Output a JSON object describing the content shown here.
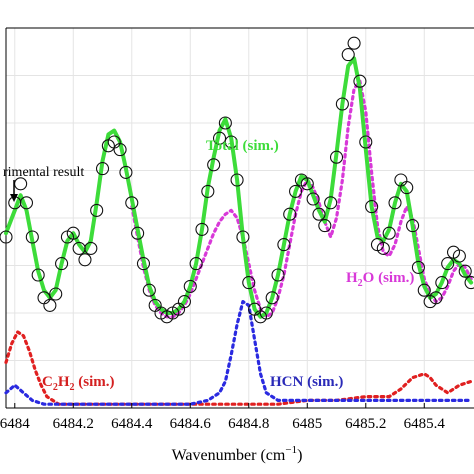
{
  "chart_data": {
    "type": "line",
    "xlabel": "Wavenumber (cm",
    "xlabel_sup": "−1",
    "xlabel_close": ")",
    "xlim": [
      6483.97,
      6485.57
    ],
    "ylim": [
      0,
      1.0
    ],
    "grid": true,
    "x_ticks": [
      6484,
      6484.2,
      6484.4,
      6484.6,
      6484.8,
      6485,
      6485.2,
      6485.4
    ],
    "x_tick_labels": [
      "6484",
      "6484.2",
      "6484.4",
      "6484.6",
      "6484.8",
      "6485",
      "6485.2",
      "6485.4"
    ],
    "series": [
      {
        "key": "experimental",
        "style": "circles",
        "color": "#111111",
        "x": [
          6483.97,
          6484.0,
          6484.02,
          6484.04,
          6484.06,
          6484.08,
          6484.1,
          6484.12,
          6484.14,
          6484.16,
          6484.18,
          6484.2,
          6484.22,
          6484.24,
          6484.26,
          6484.28,
          6484.3,
          6484.32,
          6484.34,
          6484.36,
          6484.38,
          6484.4,
          6484.42,
          6484.44,
          6484.46,
          6484.48,
          6484.5,
          6484.52,
          6484.54,
          6484.56,
          6484.58,
          6484.6,
          6484.62,
          6484.64,
          6484.66,
          6484.68,
          6484.7,
          6484.72,
          6484.74,
          6484.76,
          6484.78,
          6484.8,
          6484.82,
          6484.84,
          6484.86,
          6484.88,
          6484.9,
          6484.92,
          6484.94,
          6484.96,
          6484.98,
          6485.0,
          6485.02,
          6485.04,
          6485.06,
          6485.08,
          6485.1,
          6485.12,
          6485.14,
          6485.16,
          6485.18,
          6485.2,
          6485.22,
          6485.24,
          6485.26,
          6485.28,
          6485.3,
          6485.32,
          6485.34,
          6485.36,
          6485.38,
          6485.4,
          6485.42,
          6485.44,
          6485.46,
          6485.48,
          6485.5,
          6485.52,
          6485.54,
          6485.56
        ],
        "y": [
          0.45,
          0.54,
          0.59,
          0.54,
          0.45,
          0.35,
          0.29,
          0.27,
          0.3,
          0.38,
          0.45,
          0.46,
          0.42,
          0.39,
          0.42,
          0.52,
          0.63,
          0.69,
          0.7,
          0.68,
          0.62,
          0.54,
          0.46,
          0.38,
          0.31,
          0.27,
          0.25,
          0.24,
          0.25,
          0.26,
          0.28,
          0.32,
          0.38,
          0.47,
          0.57,
          0.64,
          0.71,
          0.75,
          0.7,
          0.6,
          0.45,
          0.33,
          0.26,
          0.24,
          0.25,
          0.29,
          0.35,
          0.43,
          0.51,
          0.57,
          0.6,
          0.59,
          0.55,
          0.51,
          0.48,
          0.54,
          0.66,
          0.8,
          0.93,
          0.96,
          0.86,
          0.7,
          0.53,
          0.43,
          0.42,
          0.46,
          0.54,
          0.6,
          0.58,
          0.48,
          0.37,
          0.31,
          0.28,
          0.29,
          0.33,
          0.38,
          0.41,
          0.4,
          0.36,
          0.33
        ]
      },
      {
        "key": "total",
        "name": "Total (sim.)",
        "style": "solid",
        "color": "#3ddc3a",
        "x": [
          6483.97,
          6484.0,
          6484.02,
          6484.04,
          6484.06,
          6484.08,
          6484.1,
          6484.12,
          6484.14,
          6484.16,
          6484.18,
          6484.2,
          6484.22,
          6484.24,
          6484.26,
          6484.28,
          6484.3,
          6484.32,
          6484.34,
          6484.36,
          6484.38,
          6484.4,
          6484.42,
          6484.44,
          6484.46,
          6484.48,
          6484.5,
          6484.52,
          6484.54,
          6484.56,
          6484.58,
          6484.6,
          6484.62,
          6484.64,
          6484.66,
          6484.68,
          6484.7,
          6484.72,
          6484.74,
          6484.76,
          6484.78,
          6484.8,
          6484.82,
          6484.84,
          6484.86,
          6484.88,
          6484.9,
          6484.92,
          6484.94,
          6484.96,
          6484.98,
          6485.0,
          6485.02,
          6485.04,
          6485.06,
          6485.08,
          6485.1,
          6485.12,
          6485.14,
          6485.16,
          6485.18,
          6485.2,
          6485.22,
          6485.24,
          6485.26,
          6485.28,
          6485.3,
          6485.32,
          6485.34,
          6485.36,
          6485.38,
          6485.4,
          6485.42,
          6485.44,
          6485.46,
          6485.48,
          6485.5,
          6485.52,
          6485.54,
          6485.56
        ],
        "y": [
          0.46,
          0.52,
          0.56,
          0.52,
          0.44,
          0.36,
          0.31,
          0.29,
          0.31,
          0.38,
          0.44,
          0.46,
          0.43,
          0.41,
          0.44,
          0.54,
          0.65,
          0.72,
          0.73,
          0.7,
          0.63,
          0.55,
          0.47,
          0.39,
          0.32,
          0.28,
          0.26,
          0.25,
          0.25,
          0.26,
          0.28,
          0.32,
          0.38,
          0.47,
          0.58,
          0.66,
          0.73,
          0.76,
          0.71,
          0.6,
          0.45,
          0.33,
          0.26,
          0.24,
          0.25,
          0.29,
          0.35,
          0.43,
          0.51,
          0.57,
          0.61,
          0.6,
          0.56,
          0.52,
          0.49,
          0.55,
          0.67,
          0.8,
          0.9,
          0.92,
          0.84,
          0.68,
          0.53,
          0.45,
          0.44,
          0.47,
          0.54,
          0.59,
          0.57,
          0.48,
          0.38,
          0.32,
          0.29,
          0.3,
          0.33,
          0.37,
          0.39,
          0.38,
          0.35,
          0.33
        ]
      },
      {
        "key": "h2o",
        "name": "H2O (sim.)",
        "style": "dotted",
        "color": "#d838d8",
        "x": [
          6484.4,
          6484.42,
          6484.44,
          6484.46,
          6484.48,
          6484.5,
          6484.52,
          6484.54,
          6484.56,
          6484.58,
          6484.6,
          6484.62,
          6484.64,
          6484.66,
          6484.68,
          6484.7,
          6484.72,
          6484.74,
          6484.76,
          6484.78,
          6484.8,
          6484.82,
          6484.84,
          6484.86,
          6484.88,
          6484.9,
          6484.92,
          6484.94,
          6484.96,
          6484.98,
          6485.0,
          6485.02,
          6485.04,
          6485.06,
          6485.08,
          6485.1,
          6485.12,
          6485.14,
          6485.16,
          6485.18,
          6485.2,
          6485.22,
          6485.24,
          6485.26,
          6485.28,
          6485.3,
          6485.32,
          6485.34,
          6485.36,
          6485.38,
          6485.4,
          6485.42,
          6485.44,
          6485.46,
          6485.48,
          6485.5,
          6485.52,
          6485.54,
          6485.56
        ],
        "y": [
          0.53,
          0.45,
          0.37,
          0.31,
          0.27,
          0.25,
          0.24,
          0.24,
          0.25,
          0.27,
          0.3,
          0.34,
          0.38,
          0.42,
          0.46,
          0.49,
          0.51,
          0.52,
          0.5,
          0.45,
          0.38,
          0.31,
          0.26,
          0.24,
          0.25,
          0.29,
          0.35,
          0.43,
          0.51,
          0.57,
          0.6,
          0.58,
          0.54,
          0.49,
          0.45,
          0.5,
          0.6,
          0.74,
          0.84,
          0.86,
          0.78,
          0.62,
          0.48,
          0.41,
          0.4,
          0.43,
          0.49,
          0.53,
          0.5,
          0.42,
          0.34,
          0.3,
          0.28,
          0.29,
          0.32,
          0.36,
          0.38,
          0.37,
          0.34
        ]
      },
      {
        "key": "c2h2",
        "name": "C2H2 (sim.)",
        "style": "dotted",
        "color": "#e02020",
        "x": [
          6483.97,
          6483.99,
          6484.01,
          6484.03,
          6484.05,
          6484.07,
          6484.09,
          6484.11,
          6484.13,
          6484.15,
          6484.2,
          6484.3,
          6484.4,
          6484.5,
          6484.6,
          6484.7,
          6484.8,
          6484.9,
          6485.0,
          6485.1,
          6485.2,
          6485.24,
          6485.28,
          6485.32,
          6485.36,
          6485.4,
          6485.42,
          6485.44,
          6485.48,
          6485.52,
          6485.56
        ],
        "y": [
          0.12,
          0.17,
          0.2,
          0.19,
          0.15,
          0.1,
          0.06,
          0.03,
          0.02,
          0.01,
          0.01,
          0.01,
          0.01,
          0.01,
          0.01,
          0.01,
          0.01,
          0.01,
          0.02,
          0.02,
          0.03,
          0.03,
          0.03,
          0.05,
          0.08,
          0.09,
          0.08,
          0.06,
          0.04,
          0.06,
          0.07
        ]
      },
      {
        "key": "hcn",
        "name": "HCN (sim.)",
        "style": "dotted",
        "color": "#2a2ae0",
        "x": [
          6483.97,
          6484.0,
          6484.03,
          6484.06,
          6484.1,
          6484.2,
          6484.3,
          6484.4,
          6484.5,
          6484.6,
          6484.66,
          6484.7,
          6484.72,
          6484.74,
          6484.76,
          6484.78,
          6484.8,
          6484.82,
          6484.84,
          6484.86,
          6484.9,
          6484.95,
          6485.0,
          6485.1,
          6485.2,
          6485.3,
          6485.4,
          6485.5,
          6485.56
        ],
        "y": [
          0.04,
          0.06,
          0.04,
          0.02,
          0.01,
          0.01,
          0.01,
          0.01,
          0.01,
          0.01,
          0.02,
          0.04,
          0.07,
          0.14,
          0.22,
          0.28,
          0.27,
          0.18,
          0.09,
          0.04,
          0.02,
          0.02,
          0.02,
          0.02,
          0.02,
          0.02,
          0.02,
          0.02,
          0.02
        ]
      }
    ],
    "annotations": [
      {
        "key": "exp",
        "text": "rimental result"
      },
      {
        "key": "total",
        "text": "Total (sim.)"
      },
      {
        "key": "h2o",
        "text_main": "H",
        "sub": "2",
        "text_rest": "O (sim.)"
      },
      {
        "key": "c2h2",
        "text_main": "C",
        "sub1": "2",
        "text_mid": "H",
        "sub2": "2",
        "text_rest": " (sim.)"
      },
      {
        "key": "hcn",
        "text": "HCN (sim.)"
      }
    ]
  }
}
